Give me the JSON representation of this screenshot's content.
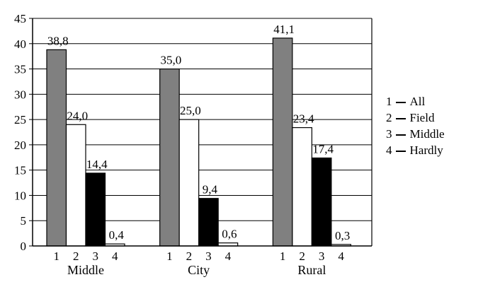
{
  "chart_data": {
    "type": "bar",
    "title": "",
    "xlabel": "",
    "ylabel": "",
    "ylim": [
      0,
      45
    ],
    "yticks": [
      0,
      5,
      10,
      15,
      20,
      25,
      30,
      35,
      40,
      45
    ],
    "grid": true,
    "categories": [
      "Middle",
      "City",
      "Rural"
    ],
    "bar_labels": [
      "1",
      "2",
      "3",
      "4"
    ],
    "series": [
      {
        "name": "All",
        "color": "#808080",
        "values": [
          38.8,
          35.0,
          41.1
        ],
        "labels": [
          "38,8",
          "35,0",
          "41,1"
        ]
      },
      {
        "name": "Field",
        "color": "#ffffff",
        "values": [
          24.0,
          25.0,
          23.4
        ],
        "labels": [
          "24,0",
          "25,0",
          "23,4"
        ]
      },
      {
        "name": "Middle",
        "color": "#000000",
        "values": [
          14.4,
          9.4,
          17.4
        ],
        "labels": [
          "14,4",
          "9,4",
          "17,4"
        ]
      },
      {
        "name": "Hardly",
        "color": "#ffffff",
        "values": [
          0.4,
          0.6,
          0.3
        ],
        "labels": [
          "0,4",
          "0,6",
          "0,3"
        ]
      }
    ],
    "legend_position": "right"
  },
  "legend": {
    "items": [
      {
        "num": "1",
        "label": "All"
      },
      {
        "num": "2",
        "label": "Field"
      },
      {
        "num": "3",
        "label": "Middle"
      },
      {
        "num": "4",
        "label": "Hardly"
      }
    ]
  }
}
